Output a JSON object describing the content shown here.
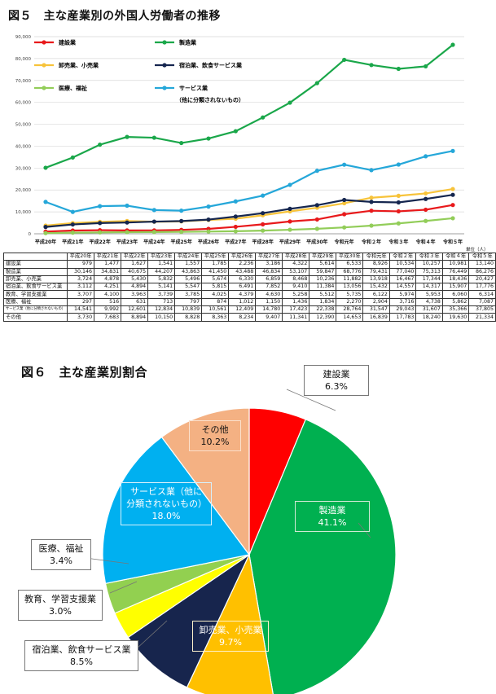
{
  "figure5": {
    "title": "図５　主な産業別の外国人労働者の推移",
    "unit_note": "単位（人）",
    "chart_data": {
      "type": "line",
      "title": "図５　主な産業別の外国人労働者の推移",
      "x": [
        "平成20年",
        "平成21年",
        "平成22年",
        "平成23年",
        "平成24年",
        "平成25年",
        "平成26年",
        "平成27年",
        "平成28年",
        "平成29年",
        "平成30年",
        "令和元年",
        "令和２年",
        "令和３年",
        "令和４年",
        "令和５年"
      ],
      "ylim": [
        0,
        90000
      ],
      "yticks": [
        0,
        10000,
        20000,
        30000,
        40000,
        50000,
        60000,
        70000,
        80000,
        90000
      ],
      "ytick_labels": [
        "0",
        "10,000",
        "20,000",
        "30,000",
        "40,000",
        "50,000",
        "60,000",
        "70,000",
        "80,000",
        "90,000"
      ],
      "grid": true,
      "legend_placement": "top-left",
      "series": [
        {
          "name": "建設業",
          "color": "#e8191b",
          "values": [
            979,
            1477,
            1627,
            1541,
            1557,
            1785,
            2236,
            3186,
            4322,
            5614,
            6533,
            8926,
            10534,
            10257,
            10981,
            13140
          ]
        },
        {
          "name": "製造業",
          "color": "#1aa74a",
          "values": [
            30146,
            34831,
            40675,
            44207,
            43863,
            41450,
            43488,
            46834,
            53107,
            59847,
            68776,
            79431,
            77040,
            75313,
            76449,
            86276
          ]
        },
        {
          "name": "卸売業、小売業",
          "color": "#f7c33a",
          "values": [
            3724,
            4878,
            5430,
            5832,
            5496,
            5674,
            6330,
            6859,
            8468,
            10236,
            11882,
            13918,
            16467,
            17344,
            18436,
            20427
          ]
        },
        {
          "name": "宿泊業、飲食サービス業",
          "color": "#15264f",
          "values": [
            3112,
            4251,
            4894,
            5141,
            5547,
            5815,
            6491,
            7852,
            9410,
            11384,
            13056,
            15432,
            14557,
            14317,
            15907,
            17776
          ]
        },
        {
          "name": "医療、福祉",
          "color": "#92cd59",
          "values": [
            297,
            516,
            631,
            713,
            797,
            874,
            1012,
            1150,
            1436,
            1834,
            2270,
            2904,
            3716,
            4738,
            5862,
            7087
          ]
        },
        {
          "name": "サービス業（他に分類されないもの）",
          "name_line1": "サービス業",
          "name_line2": "（他に分類されないもの）",
          "color": "#25a7d9",
          "values": [
            14541,
            9992,
            12601,
            12834,
            10839,
            10561,
            12409,
            14780,
            17423,
            22338,
            28764,
            31547,
            29043,
            31607,
            35366,
            37805
          ]
        }
      ]
    },
    "table": {
      "columns": [
        "平成20年",
        "平成21年",
        "平成22年",
        "平成23年",
        "平成24年",
        "平成25年",
        "平成26年",
        "平成27年",
        "平成28年",
        "平成29年",
        "平成30年",
        "令和元年",
        "令和２年",
        "令和３年",
        "令和４年",
        "令和５年"
      ],
      "rows": [
        {
          "label": "建設業",
          "values": [
            "979",
            "1,477",
            "1,627",
            "1,541",
            "1,557",
            "1,785",
            "2,236",
            "3,186",
            "4,322",
            "5,614",
            "6,533",
            "8,926",
            "10,534",
            "10,257",
            "10,981",
            "13,140"
          ]
        },
        {
          "label": "製造業",
          "values": [
            "30,146",
            "34,831",
            "40,675",
            "44,207",
            "43,863",
            "41,450",
            "43,488",
            "46,834",
            "53,107",
            "59,847",
            "68,776",
            "79,431",
            "77,040",
            "75,313",
            "76,449",
            "86,276"
          ]
        },
        {
          "label": "卸売業、小売業",
          "values": [
            "3,724",
            "4,878",
            "5,430",
            "5,832",
            "5,496",
            "5,674",
            "6,330",
            "6,859",
            "8,468",
            "10,236",
            "11,882",
            "13,918",
            "16,467",
            "17,344",
            "18,436",
            "20,427"
          ]
        },
        {
          "label": "宿泊業、飲食サービス業",
          "values": [
            "3,112",
            "4,251",
            "4,894",
            "5,141",
            "5,547",
            "5,815",
            "6,491",
            "7,852",
            "9,410",
            "11,384",
            "13,056",
            "15,432",
            "14,557",
            "14,317",
            "15,907",
            "17,776"
          ]
        },
        {
          "label": "教育、学習支援業",
          "values": [
            "3,707",
            "4,100",
            "3,963",
            "3,739",
            "3,785",
            "4,025",
            "4,379",
            "4,630",
            "5,258",
            "5,512",
            "5,735",
            "6,122",
            "5,974",
            "5,953",
            "6,060",
            "6,314"
          ]
        },
        {
          "label": "医療、福祉",
          "values": [
            "297",
            "516",
            "631",
            "713",
            "797",
            "874",
            "1,012",
            "1,150",
            "1,436",
            "1,834",
            "2,270",
            "2,904",
            "3,716",
            "4,738",
            "5,862",
            "7,087"
          ]
        },
        {
          "label": "サービス業（他に分類されないもの）",
          "values": [
            "14,541",
            "9,992",
            "12,601",
            "12,834",
            "10,839",
            "10,561",
            "12,409",
            "14,780",
            "17,423",
            "22,338",
            "28,764",
            "31,547",
            "29,043",
            "31,607",
            "35,366",
            "37,805"
          ]
        },
        {
          "label": "その他",
          "values": [
            "3,730",
            "7,683",
            "8,894",
            "10,150",
            "8,828",
            "8,363",
            "8,234",
            "9,407",
            "11,341",
            "12,390",
            "14,653",
            "16,839",
            "17,783",
            "18,240",
            "19,630",
            "21,334"
          ]
        }
      ]
    }
  },
  "figure6": {
    "title": "図６　主な産業別割合",
    "chart_data": {
      "type": "pie",
      "title": "図６　主な産業別割合",
      "slices": [
        {
          "label": "建設業",
          "value_label": "6.3%",
          "value": 6.3,
          "color": "#ff0000"
        },
        {
          "label": "製造業",
          "value_label": "41.1%",
          "value": 41.1,
          "color": "#00b050"
        },
        {
          "label": "卸売業、小売業",
          "value_label": "9.7%",
          "value": 9.7,
          "color": "#ffc000"
        },
        {
          "label": "宿泊業、飲食サービス業",
          "value_label": "8.5%",
          "value": 8.5,
          "color": "#17254d"
        },
        {
          "label": "教育、学習支援業",
          "value_label": "3.0%",
          "value": 3.0,
          "color": "#ffff00"
        },
        {
          "label": "医療、福祉",
          "value_label": "3.4%",
          "value": 3.4,
          "color": "#92d050"
        },
        {
          "label": "サービス業（他に分類されないもの）",
          "label_line1": "サービス業（他に",
          "label_line2": "分類されないもの）",
          "value_label": "18.0%",
          "value": 18.0,
          "color": "#00b0f0"
        },
        {
          "label": "その他",
          "value_label": "10.2%",
          "value": 10.2,
          "color": "#f4b183"
        }
      ]
    }
  }
}
